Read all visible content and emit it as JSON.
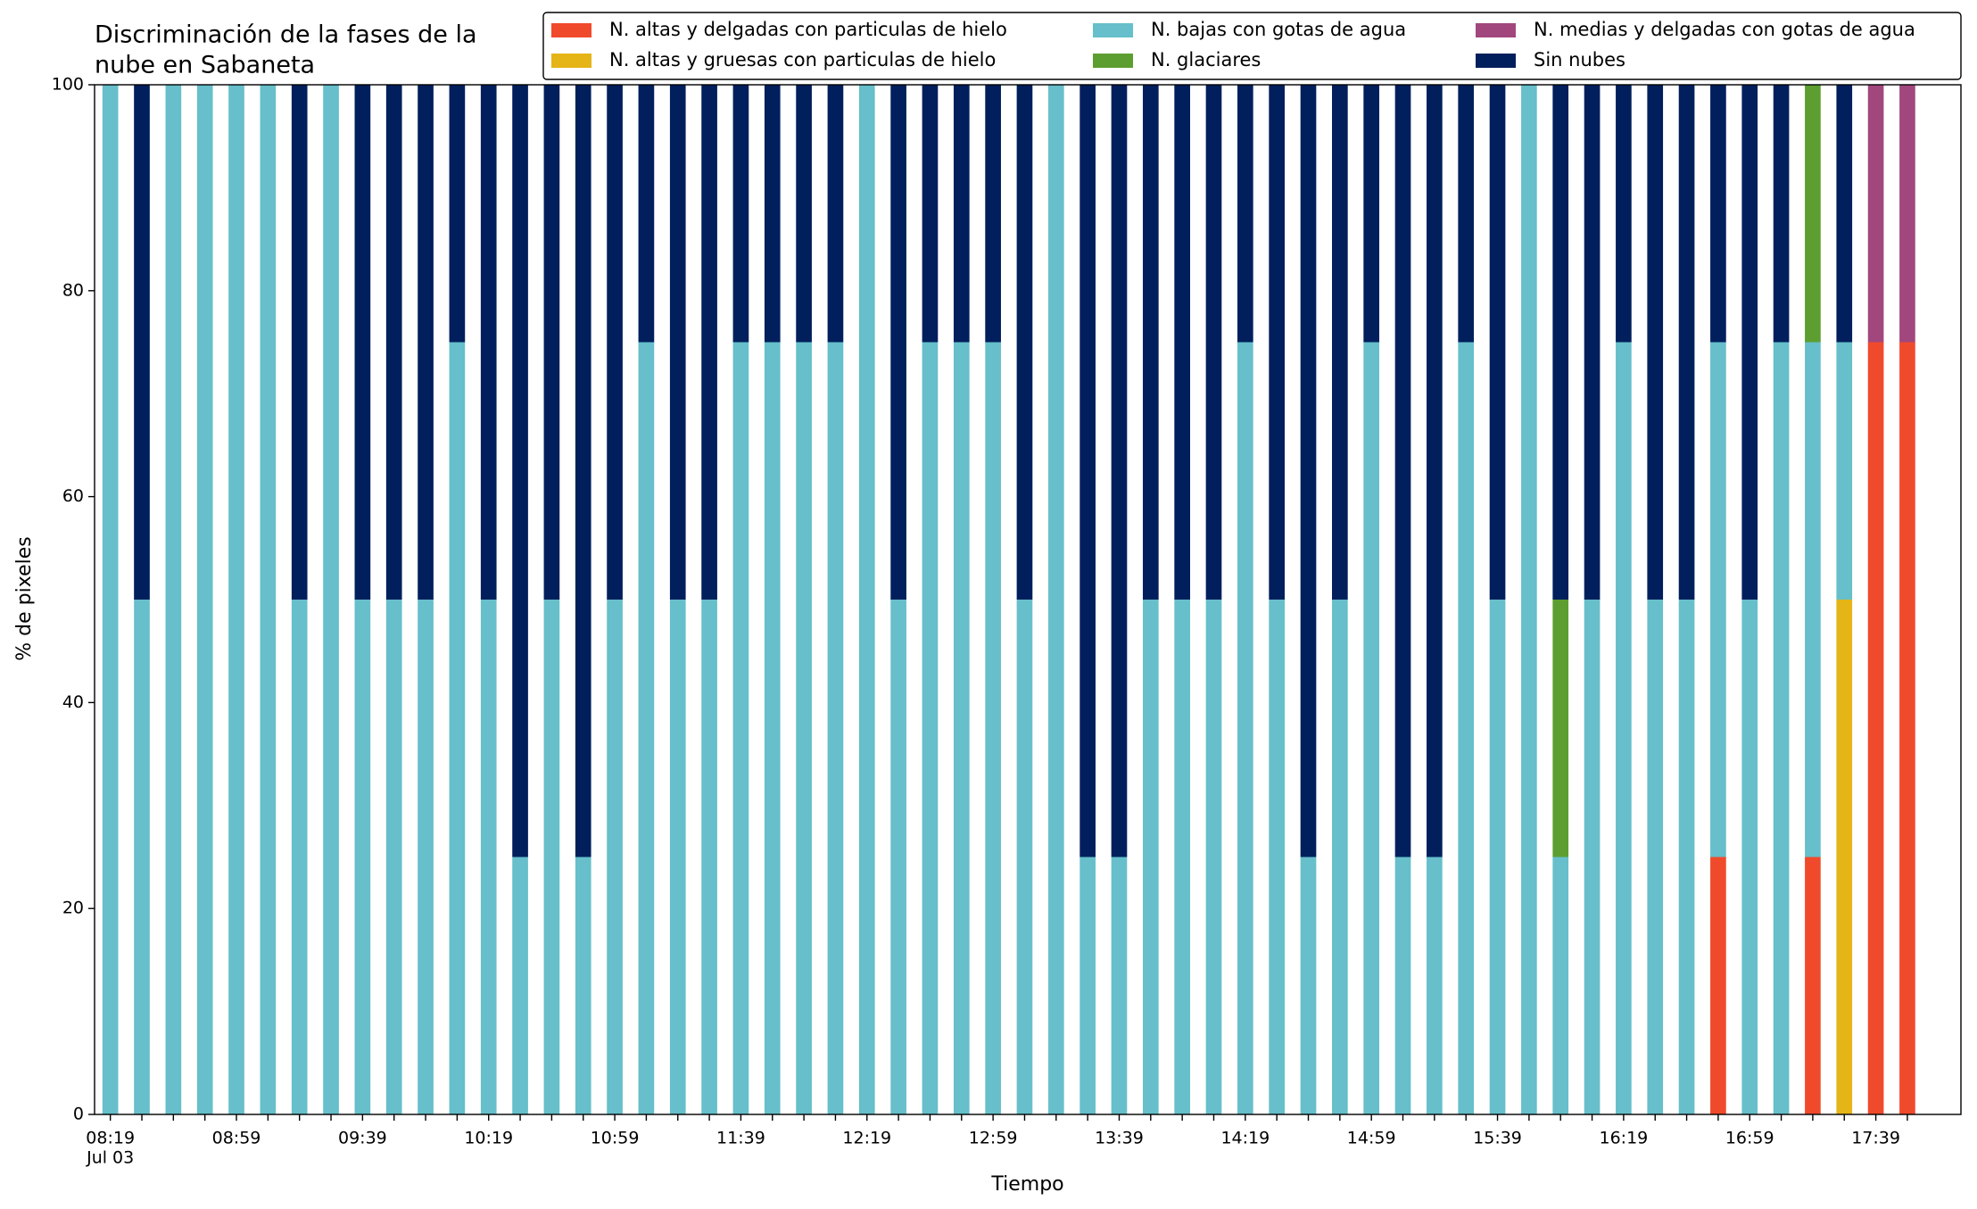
{
  "chart_data": {
    "type": "stacked_bar",
    "title": [
      "Discriminación de la fases de la",
      "nube en Sabaneta"
    ],
    "x_label": "Tiempo",
    "y_label": "% de pixeles",
    "x_date_label": "Jul 03",
    "categories": [
      "08:19",
      null,
      null,
      null,
      "08:59",
      null,
      null,
      null,
      "09:39",
      null,
      null,
      null,
      "10:19",
      null,
      null,
      null,
      "10:59",
      null,
      null,
      null,
      "11:39",
      null,
      null,
      null,
      "12:19",
      null,
      null,
      null,
      "12:59",
      null,
      null,
      null,
      "13:39",
      null,
      null,
      null,
      "14:19",
      null,
      null,
      null,
      "14:59",
      null,
      null,
      null,
      "15:39",
      null,
      null,
      null,
      "16:19",
      null,
      null,
      null,
      "16:59",
      null,
      null,
      null,
      "17:39",
      null
    ],
    "series": [
      {
        "name": "N. altas y delgadas con particulas de hielo",
        "color": "#f04a2c",
        "values": [
          0,
          0,
          0,
          0,
          0,
          0,
          0,
          0,
          0,
          0,
          0,
          0,
          0,
          0,
          0,
          0,
          0,
          0,
          0,
          0,
          0,
          0,
          0,
          0,
          0,
          0,
          0,
          0,
          0,
          0,
          0,
          0,
          0,
          0,
          0,
          0,
          0,
          0,
          0,
          0,
          0,
          0,
          0,
          0,
          0,
          0,
          0,
          0,
          0,
          0,
          0,
          25,
          0,
          0,
          25,
          0,
          75,
          75
        ]
      },
      {
        "name": "N. altas y gruesas con particulas de hielo",
        "color": "#e5b416",
        "values": [
          0,
          0,
          0,
          0,
          0,
          0,
          0,
          0,
          0,
          0,
          0,
          0,
          0,
          0,
          0,
          0,
          0,
          0,
          0,
          0,
          0,
          0,
          0,
          0,
          0,
          0,
          0,
          0,
          0,
          0,
          0,
          0,
          0,
          0,
          0,
          0,
          0,
          0,
          0,
          0,
          0,
          0,
          0,
          0,
          0,
          0,
          0,
          0,
          0,
          0,
          0,
          0,
          0,
          0,
          0,
          50,
          0,
          0
        ]
      },
      {
        "name": "N. bajas con gotas de agua",
        "color": "#66bfca",
        "values": [
          100,
          50,
          100,
          100,
          100,
          100,
          50,
          100,
          50,
          50,
          50,
          75,
          50,
          25,
          50,
          25,
          50,
          75,
          50,
          50,
          75,
          75,
          75,
          75,
          100,
          50,
          75,
          75,
          75,
          50,
          100,
          25,
          25,
          50,
          50,
          50,
          75,
          50,
          25,
          50,
          75,
          25,
          25,
          75,
          50,
          100,
          25,
          50,
          75,
          50,
          50,
          50,
          50,
          75,
          50,
          25,
          0,
          0
        ]
      },
      {
        "name": "N. glaciares",
        "color": "#5c9e2f",
        "values": [
          0,
          0,
          0,
          0,
          0,
          0,
          0,
          0,
          0,
          0,
          0,
          0,
          0,
          0,
          0,
          0,
          0,
          0,
          0,
          0,
          0,
          0,
          0,
          0,
          0,
          0,
          0,
          0,
          0,
          0,
          0,
          0,
          0,
          0,
          0,
          0,
          0,
          0,
          0,
          0,
          0,
          0,
          0,
          0,
          0,
          0,
          25,
          0,
          0,
          0,
          0,
          0,
          0,
          0,
          25,
          0,
          0,
          0
        ]
      },
      {
        "name": "N. medias y delgadas con gotas de agua",
        "color": "#a2477e",
        "values": [
          0,
          0,
          0,
          0,
          0,
          0,
          0,
          0,
          0,
          0,
          0,
          0,
          0,
          0,
          0,
          0,
          0,
          0,
          0,
          0,
          0,
          0,
          0,
          0,
          0,
          0,
          0,
          0,
          0,
          0,
          0,
          0,
          0,
          0,
          0,
          0,
          0,
          0,
          0,
          0,
          0,
          0,
          0,
          0,
          0,
          0,
          0,
          0,
          0,
          0,
          0,
          0,
          0,
          0,
          0,
          0,
          25,
          25
        ]
      },
      {
        "name": "Sin nubes",
        "color": "#001f5c",
        "values": [
          0,
          50,
          0,
          0,
          0,
          0,
          50,
          0,
          50,
          50,
          50,
          25,
          50,
          75,
          50,
          75,
          50,
          25,
          50,
          50,
          25,
          25,
          25,
          25,
          0,
          50,
          25,
          25,
          25,
          50,
          0,
          75,
          75,
          50,
          50,
          50,
          25,
          50,
          75,
          50,
          25,
          75,
          75,
          25,
          50,
          0,
          50,
          50,
          25,
          50,
          50,
          25,
          50,
          25,
          0,
          25,
          0,
          0
        ]
      }
    ],
    "ylim": [
      0,
      100
    ],
    "yticks": [
      0,
      20,
      40,
      60,
      80,
      100
    ],
    "grid": false,
    "legend": "top-right"
  }
}
